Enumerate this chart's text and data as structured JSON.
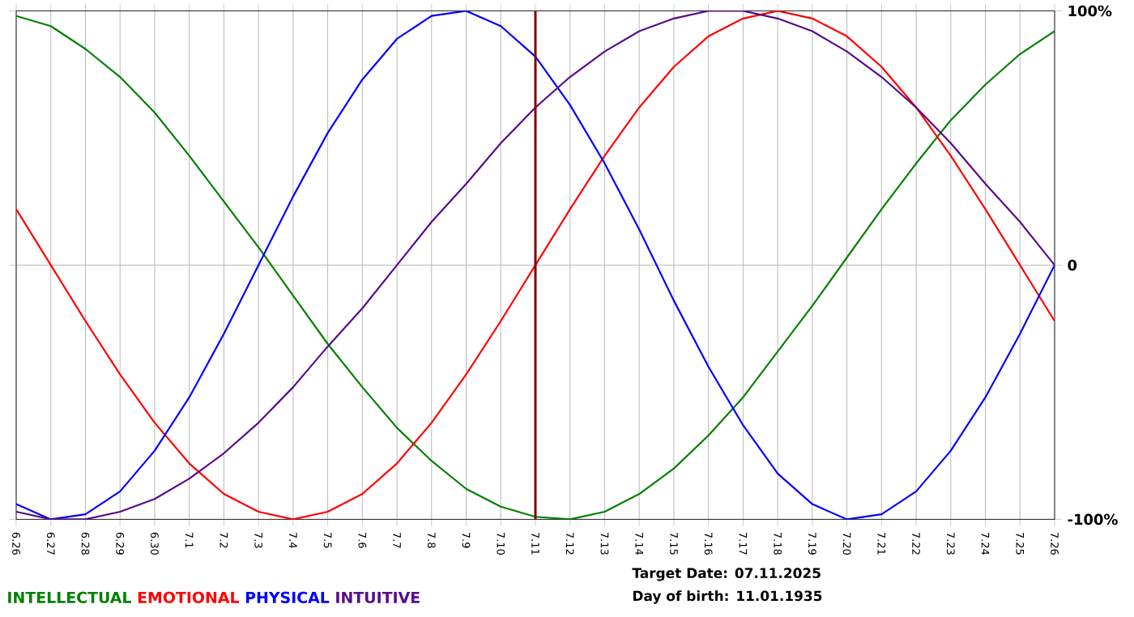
{
  "chart_data": {
    "type": "line",
    "categories": [
      "6.26",
      "6.27",
      "6.28",
      "6.29",
      "6.30",
      "7.1",
      "7.2",
      "7.3",
      "7.4",
      "7.5",
      "7.6",
      "7.7",
      "7.8",
      "7.9",
      "7.10",
      "7.11",
      "7.12",
      "7.13",
      "7.14",
      "7.15",
      "7.16",
      "7.17",
      "7.18",
      "7.19",
      "7.20",
      "7.21",
      "7.22",
      "7.23",
      "7.24",
      "7.25",
      "7.26"
    ],
    "series": [
      {
        "name": "INTELLECTUAL",
        "color": "#008000",
        "values": [
          98,
          94,
          85,
          74,
          60,
          43,
          25,
          7,
          -12,
          -31,
          -48,
          -64,
          -77,
          -88,
          -95,
          -99,
          -100,
          -97,
          -90,
          -80,
          -67,
          -52,
          -34,
          -16,
          3,
          22,
          40,
          57,
          71,
          83,
          92
        ]
      },
      {
        "name": "EMOTIONAL",
        "color": "#ff0000",
        "values": [
          22,
          0,
          -22,
          -43,
          -62,
          -78,
          -90,
          -97,
          -100,
          -97,
          -90,
          -78,
          -62,
          -43,
          -22,
          0,
          22,
          43,
          62,
          78,
          90,
          97,
          100,
          97,
          90,
          78,
          62,
          43,
          22,
          0,
          -22
        ]
      },
      {
        "name": "PHYSICAL",
        "color": "#0000ff",
        "values": [
          -94,
          -100,
          -98,
          -89,
          -73,
          -52,
          -27,
          0,
          27,
          52,
          73,
          89,
          98,
          100,
          94,
          82,
          63,
          40,
          14,
          -14,
          -40,
          -63,
          -82,
          -94,
          -100,
          -98,
          -89,
          -73,
          -52,
          -27,
          0
        ]
      },
      {
        "name": "INTUITIVE",
        "color": "#5a0a8c",
        "values": [
          -97,
          -100,
          -100,
          -97,
          -92,
          -84,
          -74,
          -62,
          -48,
          -32,
          -17,
          0,
          17,
          32,
          48,
          62,
          74,
          84,
          92,
          97,
          100,
          100,
          97,
          92,
          84,
          74,
          62,
          48,
          32,
          17,
          0
        ]
      }
    ],
    "ylim": [
      -100,
      100
    ],
    "yticks": [
      {
        "value": 100,
        "label": "100%"
      },
      {
        "value": 0,
        "label": "0"
      },
      {
        "value": -100,
        "label": "-100%"
      }
    ],
    "grid": true,
    "legend": "bottom left",
    "line_style": "solid",
    "ref_lines": [
      {
        "axis": "x",
        "value": "7.11",
        "color": "#800000"
      }
    ],
    "annotations": [
      "Target Date: 07.11.2025",
      "Day of birth: 11.01.1935"
    ]
  }
}
